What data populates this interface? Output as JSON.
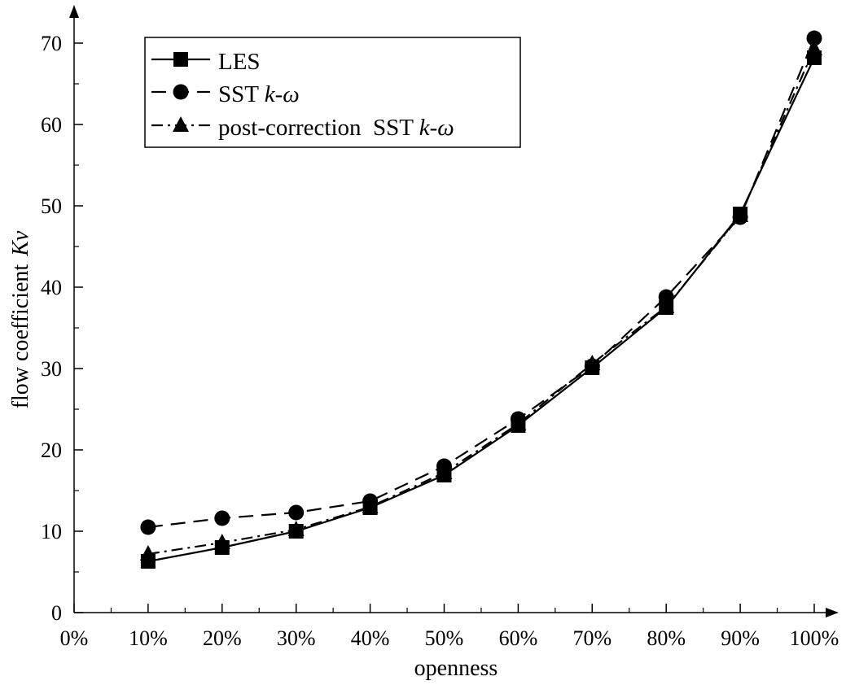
{
  "chart_data": {
    "type": "line",
    "title": "",
    "xlabel": "openness",
    "ylabel": "flow coefficient",
    "ylabel_symbol": "Kv",
    "categories": [
      "0%",
      "10%",
      "20%",
      "30%",
      "40%",
      "50%",
      "60%",
      "70%",
      "80%",
      "90%",
      "100%"
    ],
    "x_values": [
      10,
      20,
      30,
      40,
      50,
      60,
      70,
      80,
      90,
      100
    ],
    "xlim": [
      0,
      100
    ],
    "ylim": [
      0,
      70
    ],
    "yticks": [
      0,
      10,
      20,
      30,
      40,
      50,
      60,
      70
    ],
    "legend_position": "top-left",
    "series": [
      {
        "name": "LES",
        "legend_label": "LES",
        "legend_italic": "",
        "line_style": "solid",
        "marker": "square",
        "values": [
          6.3,
          8.0,
          10.0,
          12.9,
          16.9,
          23.0,
          30.1,
          37.5,
          49.0,
          68.2
        ]
      },
      {
        "name": "SST k-ω",
        "legend_label": "SST ",
        "legend_italic": "k-ω",
        "line_style": "dashed",
        "marker": "circle",
        "values": [
          10.5,
          11.6,
          12.3,
          13.7,
          18.0,
          23.8,
          30.3,
          38.8,
          48.6,
          70.6
        ]
      },
      {
        "name": "post-correction SST k-ω",
        "legend_label": "post-correction  SST ",
        "legend_italic": "k-ω",
        "line_style": "dash-dot",
        "marker": "triangle",
        "values": [
          7.2,
          8.6,
          10.2,
          13.0,
          17.2,
          23.2,
          30.6,
          37.6,
          48.8,
          69.3
        ]
      }
    ]
  }
}
